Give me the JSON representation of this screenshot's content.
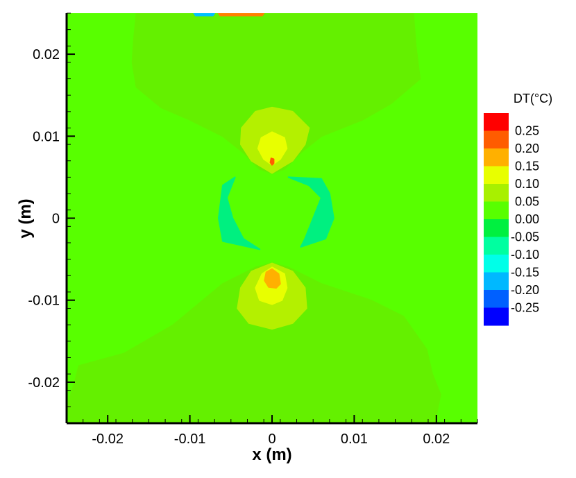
{
  "chart_data": {
    "type": "heatmap",
    "title": "",
    "xlabel": "x (m)",
    "ylabel": "y (m)",
    "xlim": [
      -0.025,
      0.025
    ],
    "ylim": [
      -0.025,
      0.025
    ],
    "grid": false,
    "x_ticks": [
      -0.02,
      -0.01,
      0,
      0.01,
      0.02
    ],
    "y_ticks": [
      -0.02,
      -0.01,
      0,
      0.01,
      0.02
    ],
    "x_tick_labels": [
      "-0.02",
      "-0.01",
      "0",
      "0.01",
      "0.02"
    ],
    "y_tick_labels": [
      "-0.02",
      "-0.01",
      "0",
      "0.01",
      "0.02"
    ],
    "background_level": 0.0,
    "legend": {
      "title": "DT(°C)",
      "placement": "right",
      "levels": [
        {
          "label": "0.25",
          "value": 0.25,
          "color": "#ff0000"
        },
        {
          "label": "0.20",
          "value": 0.2,
          "color": "#ff5c00"
        },
        {
          "label": "0.15",
          "value": 0.15,
          "color": "#ffb000"
        },
        {
          "label": "0.10",
          "value": 0.1,
          "color": "#e8ff00"
        },
        {
          "label": "0.05",
          "value": 0.05,
          "color": "#a8f000"
        },
        {
          "label": "0.00",
          "value": 0.0,
          "color": "#58ff00"
        },
        {
          "label": "-0.05",
          "value": -0.05,
          "color": "#00f040"
        },
        {
          "label": "-0.10",
          "value": -0.1,
          "color": "#00ffa0"
        },
        {
          "label": "-0.15",
          "value": -0.15,
          "color": "#00ffe8"
        },
        {
          "label": "-0.20",
          "value": -0.2,
          "color": "#00b8ff"
        },
        {
          "label": "-0.25",
          "value": -0.25,
          "color": "#0060ff"
        },
        {
          "label": "",
          "value": -0.3,
          "color": "#0000ff"
        }
      ]
    },
    "regions": [
      {
        "name": "upper-wedge",
        "level": 0.05,
        "color": "#64f000",
        "points": [
          [
            -0.0165,
            0.025
          ],
          [
            0.0172,
            0.025
          ],
          [
            0.0175,
            0.021
          ],
          [
            0.018,
            0.017
          ],
          [
            0.0145,
            0.014
          ],
          [
            0.011,
            0.012
          ],
          [
            0.006,
            0.01
          ],
          [
            0.0035,
            0.008
          ],
          [
            0.0015,
            0.006
          ],
          [
            0,
            0.0055
          ],
          [
            -0.0015,
            0.006
          ],
          [
            -0.0035,
            0.008
          ],
          [
            -0.006,
            0.01
          ],
          [
            -0.01,
            0.012
          ],
          [
            -0.0135,
            0.0135
          ],
          [
            -0.0165,
            0.016
          ],
          [
            -0.017,
            0.019
          ],
          [
            -0.0168,
            0.022
          ]
        ]
      },
      {
        "name": "lower-wedge",
        "level": 0.05,
        "color": "#64f000",
        "points": [
          [
            0,
            -0.0055
          ],
          [
            0.002,
            -0.006
          ],
          [
            0.006,
            -0.008
          ],
          [
            0.012,
            -0.01
          ],
          [
            0.016,
            -0.012
          ],
          [
            0.0188,
            -0.016
          ],
          [
            0.0195,
            -0.019
          ],
          [
            0.0205,
            -0.0215
          ],
          [
            0.0198,
            -0.025
          ],
          [
            -0.0247,
            -0.025
          ],
          [
            -0.0248,
            -0.0225
          ],
          [
            -0.024,
            -0.02
          ],
          [
            -0.0235,
            -0.018
          ],
          [
            -0.018,
            -0.0165
          ],
          [
            -0.012,
            -0.013
          ],
          [
            -0.006,
            -0.008
          ],
          [
            -0.002,
            -0.006
          ]
        ]
      },
      {
        "name": "upper-lobe",
        "level": 0.1,
        "color": "#b4f000",
        "points": [
          [
            0,
            0.0135
          ],
          [
            0.0025,
            0.013
          ],
          [
            0.0045,
            0.011
          ],
          [
            0.004,
            0.009
          ],
          [
            0.0025,
            0.007
          ],
          [
            0.0005,
            0.0058
          ],
          [
            0,
            0.0055
          ],
          [
            -0.0005,
            0.0058
          ],
          [
            -0.0025,
            0.007
          ],
          [
            -0.0038,
            0.009
          ],
          [
            -0.0037,
            0.011
          ],
          [
            -0.002,
            0.013
          ]
        ]
      },
      {
        "name": "lower-lobe",
        "level": 0.1,
        "color": "#b4f000",
        "points": [
          [
            0,
            -0.0055
          ],
          [
            0.0025,
            -0.0065
          ],
          [
            0.004,
            -0.0085
          ],
          [
            0.0042,
            -0.011
          ],
          [
            0.0025,
            -0.0128
          ],
          [
            0,
            -0.0135
          ],
          [
            -0.0028,
            -0.0128
          ],
          [
            -0.0042,
            -0.011
          ],
          [
            -0.0038,
            -0.0085
          ],
          [
            -0.0025,
            -0.0065
          ]
        ]
      },
      {
        "name": "upper-core",
        "level": 0.15,
        "color": "#e8ff00",
        "points": [
          [
            0,
            0.0105
          ],
          [
            0.0015,
            0.0098
          ],
          [
            0.0018,
            0.0085
          ],
          [
            0.001,
            0.0072
          ],
          [
            0,
            0.0065
          ],
          [
            -0.001,
            0.0072
          ],
          [
            -0.0017,
            0.0085
          ],
          [
            -0.0013,
            0.0098
          ]
        ]
      },
      {
        "name": "lower-core",
        "level": 0.15,
        "color": "#e8ff00",
        "points": [
          [
            0,
            -0.006
          ],
          [
            0.0015,
            -0.0068
          ],
          [
            0.0018,
            -0.0085
          ],
          [
            0.0012,
            -0.01
          ],
          [
            0,
            -0.0105
          ],
          [
            -0.0015,
            -0.01
          ],
          [
            -0.002,
            -0.0085
          ],
          [
            -0.0012,
            -0.0068
          ]
        ]
      },
      {
        "name": "lower-hot-spot",
        "level": 0.2,
        "color": "#ffb000",
        "points": [
          [
            0,
            -0.0062
          ],
          [
            0.0008,
            -0.0068
          ],
          [
            0.001,
            -0.008
          ],
          [
            0.0005,
            -0.0085
          ],
          [
            -0.0004,
            -0.0084
          ],
          [
            -0.0009,
            -0.0076
          ],
          [
            -0.0007,
            -0.0066
          ]
        ]
      },
      {
        "name": "upper-hot-spot",
        "level": 0.2,
        "color": "#ff5c00",
        "points": [
          [
            -0.0001,
            0.0073
          ],
          [
            0.0002,
            0.0072
          ],
          [
            0.0002,
            0.0067
          ],
          [
            0,
            0.0065
          ],
          [
            -0.0002,
            0.0068
          ]
        ]
      },
      {
        "name": "left-cold-crescent",
        "level": -0.05,
        "color": "#00f080",
        "points": [
          [
            -0.0045,
            0.005
          ],
          [
            -0.0055,
            0.0025
          ],
          [
            -0.0048,
            0
          ],
          [
            -0.0035,
            -0.0025
          ],
          [
            -0.0015,
            -0.0038
          ],
          [
            -0.006,
            -0.0028
          ],
          [
            -0.0065,
            0
          ],
          [
            -0.006,
            0.004
          ],
          [
            -0.0045,
            0.005
          ]
        ]
      },
      {
        "name": "right-cold-crescent",
        "level": -0.05,
        "color": "#00f080",
        "points": [
          [
            0.002,
            0.005
          ],
          [
            0.0045,
            0.004
          ],
          [
            0.006,
            0.0025
          ],
          [
            0.005,
            0
          ],
          [
            0.004,
            -0.0025
          ],
          [
            0.0035,
            -0.0035
          ],
          [
            0.0065,
            -0.0025
          ],
          [
            0.0075,
            0
          ],
          [
            0.007,
            0.003
          ],
          [
            0.006,
            0.0048
          ]
        ]
      },
      {
        "name": "top-edge-hot-strip",
        "level": 0.2,
        "color": "#ff8000",
        "points": [
          [
            -0.0065,
            0.025
          ],
          [
            -0.001,
            0.025
          ],
          [
            -0.0012,
            0.0247
          ],
          [
            -0.0063,
            0.0247
          ]
        ]
      },
      {
        "name": "top-edge-cold-strip",
        "level": -0.15,
        "color": "#00c0ff",
        "points": [
          [
            -0.0095,
            0.025
          ],
          [
            -0.007,
            0.025
          ],
          [
            -0.0072,
            0.0247
          ],
          [
            -0.0093,
            0.0247
          ]
        ]
      }
    ]
  }
}
